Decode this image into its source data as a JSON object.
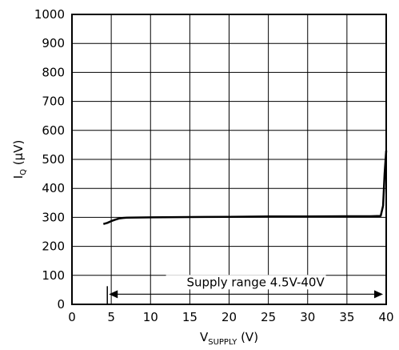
{
  "chart_data": {
    "type": "line",
    "title": "",
    "xlabel": {
      "main": "V",
      "sub": "SUPPLY",
      "unit": " (V)"
    },
    "ylabel": {
      "main": "I",
      "sub": "Q",
      "unit": " (µV)"
    },
    "xlim": [
      0,
      40
    ],
    "ylim": [
      0,
      1000
    ],
    "xticks": [
      0,
      5,
      10,
      15,
      20,
      25,
      30,
      35,
      40
    ],
    "yticks": [
      0,
      100,
      200,
      300,
      400,
      500,
      600,
      700,
      800,
      900,
      1000
    ],
    "grid": true,
    "series": [
      {
        "x": [
          4.0,
          4.5,
          5.0,
          5.5,
          6.0,
          6.5,
          7.0,
          10,
          15,
          20,
          25,
          30,
          35,
          38,
          39.3,
          39.6,
          39.8,
          40.0
        ],
        "y": [
          277,
          281,
          287,
          292,
          296,
          298,
          299,
          300,
          301,
          302,
          303,
          303,
          304,
          304,
          305,
          340,
          450,
          530
        ]
      }
    ],
    "annotations": [
      {
        "text": "Supply range 4.5V-40V",
        "x_start": 4.5,
        "x_end": 40,
        "y": 35
      }
    ]
  }
}
